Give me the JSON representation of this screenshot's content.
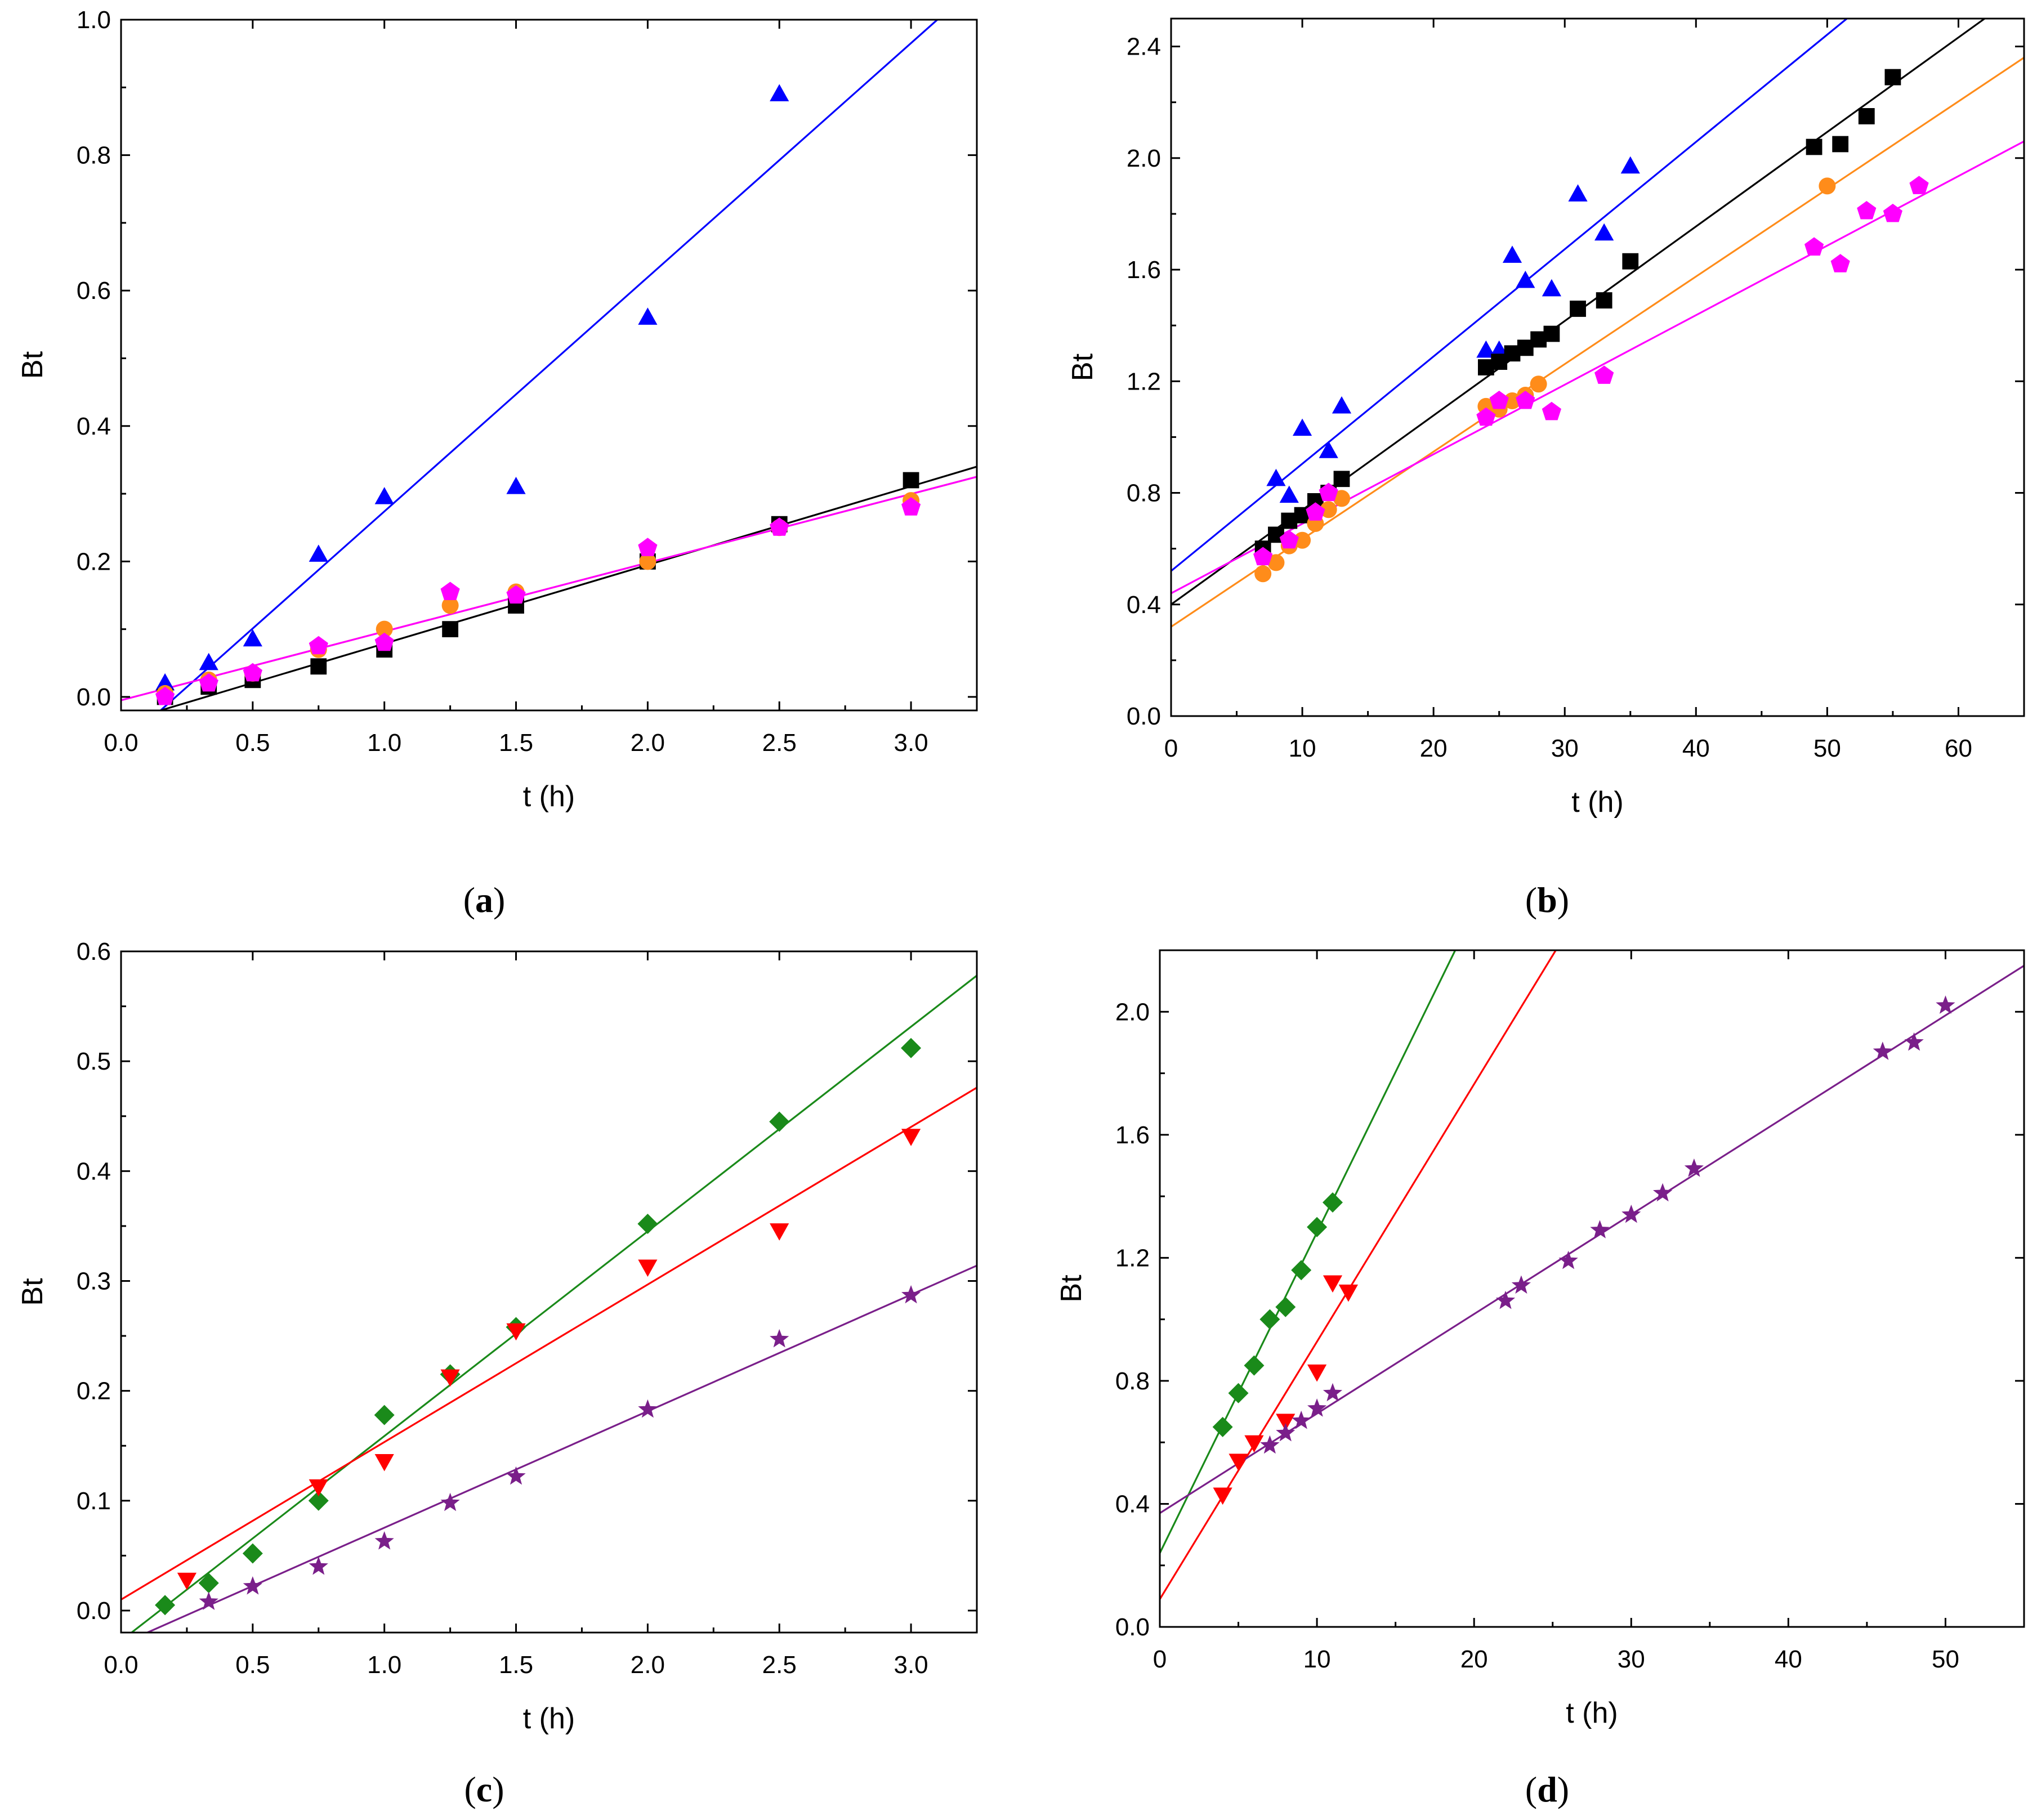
{
  "chart_data": [
    {
      "panel": "a",
      "type": "scatter",
      "panel_label_letter": "a",
      "xlabel": "t (h)",
      "ylabel": "Bt",
      "xlim": [
        0,
        3.25
      ],
      "ylim": [
        -0.02,
        1.0
      ],
      "x_ticks": [
        "0.0",
        "0.5",
        "1.0",
        "1.5",
        "2.0",
        "2.5",
        "3.0"
      ],
      "x_tick_values": [
        0,
        0.5,
        1.0,
        1.5,
        2.0,
        2.5,
        3.0
      ],
      "y_ticks": [
        "0.0",
        "0.2",
        "0.4",
        "0.6",
        "0.8",
        "1.0"
      ],
      "y_tick_values": [
        0,
        0.2,
        0.4,
        0.6,
        0.8,
        1.0
      ],
      "series": [
        {
          "name": "blue triangles",
          "marker": "triangle-up",
          "color": "#0000ff",
          "x": [
            0.167,
            0.333,
            0.5,
            0.75,
            1.0,
            1.5,
            2.0,
            2.5
          ],
          "y": [
            0.02,
            0.05,
            0.085,
            0.21,
            0.295,
            0.31,
            0.56,
            0.89
          ],
          "fit": [
            [
              0.15,
              -0.02
            ],
            [
              3.1,
              1.0
            ]
          ]
        },
        {
          "name": "black squares",
          "marker": "square",
          "color": "#000000",
          "x": [
            0.167,
            0.333,
            0.5,
            0.75,
            1.0,
            1.25,
            1.5,
            2.0,
            2.5,
            3.0
          ],
          "y": [
            0.0,
            0.015,
            0.025,
            0.045,
            0.07,
            0.1,
            0.135,
            0.2,
            0.255,
            0.32
          ],
          "fit": [
            [
              0.15,
              -0.02
            ],
            [
              3.25,
              0.34
            ]
          ]
        },
        {
          "name": "orange circles",
          "marker": "circle",
          "color": "#ff8c1a",
          "x": [
            0.167,
            0.333,
            0.5,
            0.75,
            1.0,
            1.25,
            1.5,
            2.0,
            2.5,
            3.0
          ],
          "y": [
            0.005,
            0.025,
            0.035,
            0.07,
            0.1,
            0.135,
            0.155,
            0.2,
            0.25,
            0.29
          ],
          "fit": [
            [
              0.0,
              -0.005
            ],
            [
              3.25,
              0.325
            ]
          ]
        },
        {
          "name": "magenta pentagons",
          "marker": "pentagon",
          "color": "#ff00ff",
          "x": [
            0.167,
            0.333,
            0.5,
            0.75,
            1.0,
            1.25,
            1.5,
            2.0,
            2.5,
            3.0
          ],
          "y": [
            0.0,
            0.02,
            0.035,
            0.075,
            0.08,
            0.155,
            0.15,
            0.22,
            0.25,
            0.28
          ],
          "fit": [
            [
              0.0,
              -0.005
            ],
            [
              3.25,
              0.325
            ]
          ]
        }
      ]
    },
    {
      "panel": "b",
      "type": "scatter",
      "panel_label_letter": "b",
      "xlabel": "t (h)",
      "ylabel": "Bt",
      "xlim": [
        0,
        65
      ],
      "ylim": [
        0,
        2.5
      ],
      "x_ticks": [
        "0",
        "10",
        "20",
        "30",
        "40",
        "50",
        "60"
      ],
      "x_tick_values": [
        0,
        10,
        20,
        30,
        40,
        50,
        60
      ],
      "y_ticks": [
        "0.0",
        "0.4",
        "0.8",
        "1.2",
        "1.6",
        "2.0",
        "2.4"
      ],
      "y_tick_values": [
        0,
        0.4,
        0.8,
        1.2,
        1.6,
        2.0,
        2.4
      ],
      "series": [
        {
          "name": "blue triangles",
          "marker": "triangle-up",
          "color": "#0000ff",
          "x": [
            8,
            9,
            10,
            12,
            13,
            24,
            25,
            26,
            27,
            29,
            31,
            33,
            35
          ],
          "y": [
            0.85,
            0.79,
            1.03,
            0.95,
            1.11,
            1.31,
            1.31,
            1.65,
            1.56,
            1.53,
            1.87,
            1.73,
            1.97
          ],
          "fit": [
            [
              0,
              0.52
            ],
            [
              51.5,
              2.5
            ]
          ]
        },
        {
          "name": "black squares",
          "marker": "square",
          "color": "#000000",
          "x": [
            7,
            8,
            9,
            10,
            11,
            12,
            13,
            24,
            25,
            26,
            27,
            28,
            29,
            31,
            33,
            35,
            49,
            51,
            53,
            55
          ],
          "y": [
            0.6,
            0.65,
            0.7,
            0.72,
            0.77,
            0.8,
            0.85,
            1.25,
            1.27,
            1.3,
            1.32,
            1.35,
            1.37,
            1.46,
            1.49,
            1.63,
            2.04,
            2.05,
            2.15,
            2.29
          ],
          "fit": [
            [
              0,
              0.4
            ],
            [
              62,
              2.5
            ]
          ]
        },
        {
          "name": "orange circles",
          "marker": "circle",
          "color": "#ff8c1a",
          "x": [
            7,
            8,
            9,
            10,
            11,
            12,
            13,
            24,
            25,
            26,
            27,
            28,
            50
          ],
          "y": [
            0.51,
            0.55,
            0.61,
            0.63,
            0.69,
            0.74,
            0.78,
            1.11,
            1.1,
            1.13,
            1.15,
            1.19,
            1.9
          ],
          "fit": [
            [
              0,
              0.32
            ],
            [
              65,
              2.36
            ]
          ]
        },
        {
          "name": "magenta pentagons",
          "marker": "pentagon",
          "color": "#ff00ff",
          "x": [
            7,
            9,
            11,
            12,
            24,
            25,
            27,
            29,
            33,
            49,
            51,
            53,
            55,
            57
          ],
          "y": [
            0.57,
            0.63,
            0.73,
            0.8,
            1.07,
            1.13,
            1.13,
            1.09,
            1.22,
            1.68,
            1.62,
            1.81,
            1.8,
            1.9
          ],
          "fit": [
            [
              0,
              0.44
            ],
            [
              65,
              2.06
            ]
          ]
        }
      ]
    },
    {
      "panel": "c",
      "type": "scatter",
      "panel_label_letter": "c",
      "xlabel": "t (h)",
      "ylabel": "Bt",
      "xlim": [
        0,
        3.25
      ],
      "ylim": [
        -0.02,
        0.6
      ],
      "x_ticks": [
        "0.0",
        "0.5",
        "1.0",
        "1.5",
        "2.0",
        "2.5",
        "3.0"
      ],
      "x_tick_values": [
        0,
        0.5,
        1.0,
        1.5,
        2.0,
        2.5,
        3.0
      ],
      "y_ticks": [
        "0.0",
        "0.1",
        "0.2",
        "0.3",
        "0.4",
        "0.5",
        "0.6"
      ],
      "y_tick_values": [
        0,
        0.1,
        0.2,
        0.3,
        0.4,
        0.5,
        0.6
      ],
      "series": [
        {
          "name": "green diamonds",
          "marker": "diamond",
          "color": "#1a8a1a",
          "x": [
            0.167,
            0.333,
            0.5,
            0.75,
            1.0,
            1.25,
            1.5,
            2.0,
            2.5,
            3.0
          ],
          "y": [
            0.005,
            0.025,
            0.052,
            0.1,
            0.178,
            0.215,
            0.258,
            0.352,
            0.445,
            0.512
          ],
          "fit": [
            [
              0.04,
              -0.02
            ],
            [
              3.25,
              0.578
            ]
          ]
        },
        {
          "name": "red triangles",
          "marker": "triangle-down",
          "color": "#ff0000",
          "x": [
            0.25,
            0.75,
            1.0,
            1.25,
            1.5,
            2.0,
            2.5,
            3.0
          ],
          "y": [
            0.028,
            0.113,
            0.136,
            0.213,
            0.255,
            0.313,
            0.346,
            0.432
          ],
          "fit": [
            [
              0.0,
              0.01
            ],
            [
              3.25,
              0.476
            ]
          ]
        },
        {
          "name": "purple stars",
          "marker": "star",
          "color": "#7a1f8a",
          "x": [
            0.333,
            0.5,
            0.75,
            1.0,
            1.25,
            1.5,
            2.0,
            2.5,
            3.0
          ],
          "y": [
            0.008,
            0.022,
            0.04,
            0.063,
            0.098,
            0.122,
            0.183,
            0.247,
            0.287
          ],
          "fit": [
            [
              0.1,
              -0.02
            ],
            [
              3.25,
              0.314
            ]
          ]
        }
      ]
    },
    {
      "panel": "d",
      "type": "scatter",
      "panel_label_letter": "d",
      "xlabel": "t (h)",
      "ylabel": "Bt",
      "xlim": [
        0,
        55
      ],
      "ylim": [
        0,
        2.2
      ],
      "x_ticks": [
        "0",
        "10",
        "20",
        "30",
        "40",
        "50"
      ],
      "x_tick_values": [
        0,
        10,
        20,
        30,
        40,
        50
      ],
      "y_ticks": [
        "0.0",
        "0.4",
        "0.8",
        "1.2",
        "1.6",
        "2.0"
      ],
      "y_tick_values": [
        0,
        0.4,
        0.8,
        1.2,
        1.6,
        2.0
      ],
      "series": [
        {
          "name": "green diamonds",
          "marker": "diamond",
          "color": "#1a8a1a",
          "x": [
            4,
            5,
            6,
            7,
            8,
            9,
            10,
            11
          ],
          "y": [
            0.65,
            0.76,
            0.85,
            1.0,
            1.04,
            1.16,
            1.3,
            1.38
          ],
          "fit": [
            [
              0,
              0.24
            ],
            [
              18.8,
              2.2
            ]
          ]
        },
        {
          "name": "red triangles",
          "marker": "triangle-down",
          "color": "#ff0000",
          "x": [
            4,
            5,
            6,
            8,
            10,
            11,
            12
          ],
          "y": [
            0.43,
            0.54,
            0.6,
            0.67,
            0.83,
            1.12,
            1.09
          ],
          "fit": [
            [
              0,
              0.09
            ],
            [
              25.2,
              2.2
            ]
          ]
        },
        {
          "name": "purple stars",
          "marker": "star",
          "color": "#7a1f8a",
          "x": [
            7,
            8,
            9,
            10,
            11,
            22,
            23,
            26,
            28,
            30,
            32,
            34,
            46,
            48,
            50
          ],
          "y": [
            0.59,
            0.63,
            0.67,
            0.71,
            0.76,
            1.06,
            1.11,
            1.19,
            1.29,
            1.34,
            1.41,
            1.49,
            1.87,
            1.9,
            2.02
          ],
          "fit": [
            [
              0,
              0.37
            ],
            [
              55,
              2.15
            ]
          ]
        }
      ]
    }
  ]
}
